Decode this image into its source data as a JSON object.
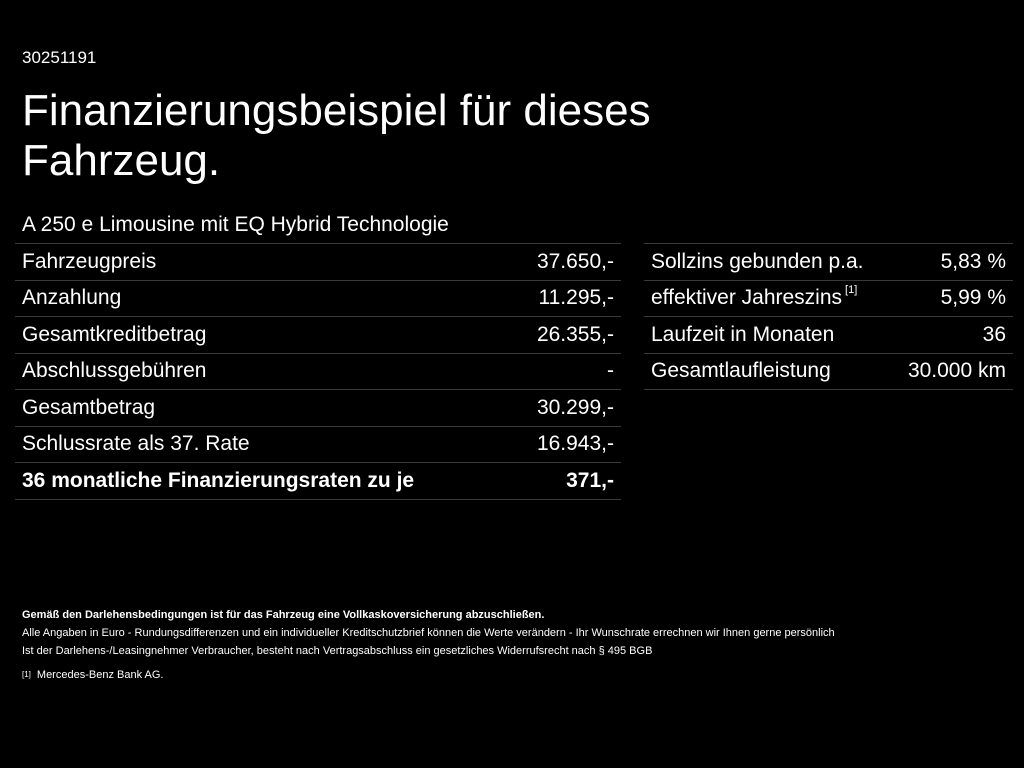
{
  "reference_number": "30251191",
  "title": "Finanzierungsbeispiel für dieses Fahrzeug.",
  "model": "A 250 e Limousine mit EQ Hybrid Technologie",
  "left_table": {
    "rows": [
      {
        "label": "Fahrzeugpreis",
        "value": "37.650,-"
      },
      {
        "label": "Anzahlung",
        "value": "11.295,-"
      },
      {
        "label": "Gesamtkreditbetrag",
        "value": "26.355,-"
      },
      {
        "label": "Abschlussgebühren",
        "value": "-"
      },
      {
        "label": "Gesamtbetrag",
        "value": "30.299,-"
      },
      {
        "label": "Schlussrate als 37. Rate",
        "value": "16.943,-"
      }
    ],
    "total": {
      "label": "36 monatliche Finanzierungsraten zu je",
      "value": "371,-"
    }
  },
  "right_table": {
    "rows": [
      {
        "label": "Sollzins gebunden p.a.",
        "footnote": "",
        "value": "5,83 %"
      },
      {
        "label": "effektiver Jahreszins",
        "footnote": "[1]",
        "value": "5,99 %"
      },
      {
        "label": "Laufzeit in Monaten",
        "footnote": "",
        "value": "36"
      },
      {
        "label": "Gesamtlaufleistung",
        "footnote": "",
        "value": "30.000 km"
      }
    ]
  },
  "notes": {
    "insurance": "Gemäß den Darlehensbedingungen ist für das Fahrzeug eine Vollkaskoversicherung abzuschließen.",
    "line1": "Alle Angaben in Euro - Rundungsdifferenzen und ein individueller Kreditschutzbrief können die Werte verändern - Ihr Wunschrate errechnen wir Ihnen gerne persönlich",
    "line2": "Ist der Darlehens-/Leasingnehmer Verbraucher, besteht nach Vertragsabschluss ein gesetzliches Widerrufsrecht nach § 495 BGB",
    "footnote_mark": "[1]",
    "footnote_text": "Mercedes-Benz Bank AG."
  }
}
